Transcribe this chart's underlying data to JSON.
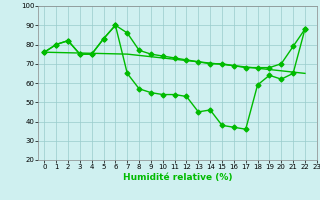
{
  "xlabel": "Humidité relative (%)",
  "background_color": "#cff0f0",
  "line_color": "#00bb00",
  "grid_color": "#99cccc",
  "ylim": [
    20,
    100
  ],
  "xlim": [
    -0.5,
    23
  ],
  "yticks": [
    20,
    30,
    40,
    50,
    60,
    70,
    80,
    90,
    100
  ],
  "xticks": [
    0,
    1,
    2,
    3,
    4,
    5,
    6,
    7,
    8,
    9,
    10,
    11,
    12,
    13,
    14,
    15,
    16,
    17,
    18,
    19,
    20,
    21,
    22,
    23
  ],
  "series": [
    {
      "x": [
        0,
        1,
        2,
        3,
        4,
        5,
        6,
        7,
        8,
        9,
        10,
        11,
        12,
        13,
        14,
        15,
        16,
        17,
        18,
        19,
        20,
        21,
        22
      ],
      "y": [
        76,
        80,
        82,
        75,
        75,
        83,
        90,
        86,
        77,
        75,
        74,
        73,
        72,
        71,
        70,
        70,
        69,
        68,
        68,
        68,
        70,
        79,
        88
      ]
    },
    {
      "x": [
        0,
        1,
        2,
        3,
        4,
        5,
        6,
        7,
        8,
        9,
        10,
        11,
        12,
        13,
        14,
        15,
        16,
        17,
        18,
        19,
        20,
        21,
        22
      ],
      "y": [
        76,
        80,
        82,
        75,
        75,
        83,
        90,
        65,
        57,
        55,
        54,
        54,
        53,
        45,
        46,
        38,
        37,
        36,
        59,
        64,
        62,
        65,
        88
      ]
    },
    {
      "x": [
        0,
        7,
        22
      ],
      "y": [
        76,
        75,
        65
      ]
    }
  ]
}
